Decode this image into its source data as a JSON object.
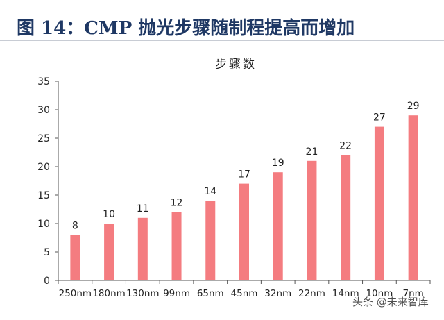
{
  "figure": {
    "title": "图 14：CMP 抛光步骤随制程提高而增加"
  },
  "watermark": "头条 @未来智库",
  "chart_data": {
    "type": "bar",
    "title": "步骤数",
    "xlabel": "",
    "ylabel": "",
    "categories": [
      "250nm",
      "180nm",
      "130nm",
      "99nm",
      "65nm",
      "45nm",
      "32nm",
      "22nm",
      "14nm",
      "10nm",
      "7nm"
    ],
    "values": [
      8,
      10,
      11,
      12,
      14,
      17,
      19,
      21,
      22,
      27,
      29
    ],
    "ylim": [
      0,
      35
    ],
    "yticks": [
      0,
      5,
      10,
      15,
      20,
      25,
      30,
      35
    ],
    "bar_color": "#f47c80",
    "grid": false,
    "data_labels": true
  }
}
